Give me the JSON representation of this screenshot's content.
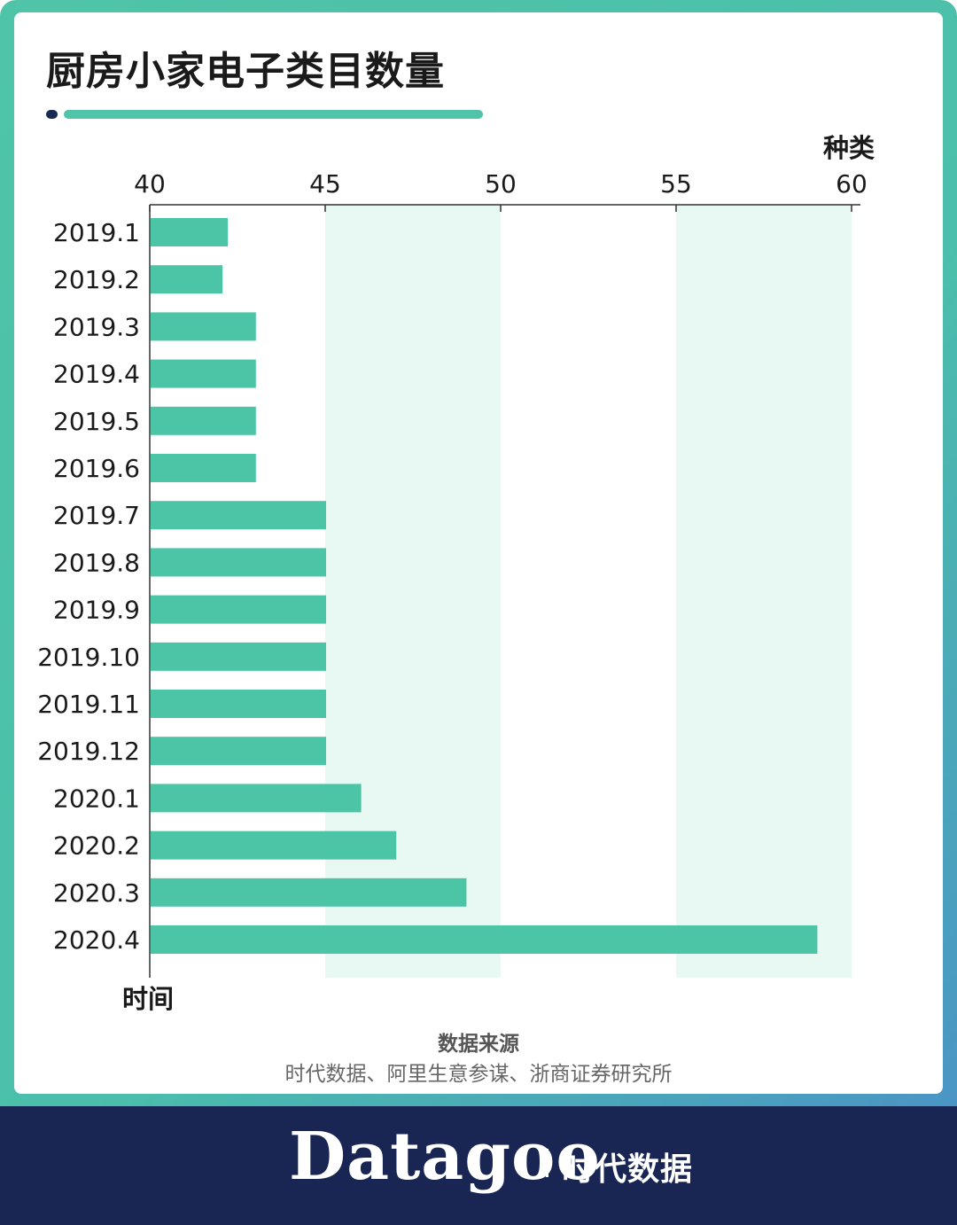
{
  "title": "厨房小家电子类目数量",
  "colors": {
    "bar": "#4cc4a6",
    "band": "#e8f8f3",
    "axis": "#333333",
    "frame_top": "#4fc4a8",
    "frame_bottom": "#4a8fc8",
    "footer_bg": "#192653",
    "deco_dot": "#1b2a55"
  },
  "chart_data": {
    "type": "bar",
    "orientation": "horizontal",
    "categories": [
      "2019.1",
      "2019.2",
      "2019.3",
      "2019.4",
      "2019.5",
      "2019.6",
      "2019.7",
      "2019.8",
      "2019.9",
      "2019.10",
      "2019.11",
      "2019.12",
      "2020.1",
      "2020.2",
      "2020.3",
      "2020.4"
    ],
    "values": [
      42.2,
      42.05,
      43,
      43,
      43,
      43,
      45,
      45,
      45,
      45,
      45,
      45,
      46,
      47,
      49,
      59
    ],
    "xlim": [
      40,
      60
    ],
    "xticks": [
      40,
      45,
      50,
      55,
      60
    ],
    "xaxis_position": "top",
    "xlabel": "种类",
    "ylabel": "时间",
    "shaded_bands": [
      [
        45,
        50
      ],
      [
        55,
        60
      ]
    ],
    "grid": false
  },
  "source": {
    "title": "数据来源",
    "text": "时代数据、阿里生意参谋、浙商证券研究所"
  },
  "footer": {
    "brand": "Datagoo",
    "brand_cn": "时代数据"
  }
}
